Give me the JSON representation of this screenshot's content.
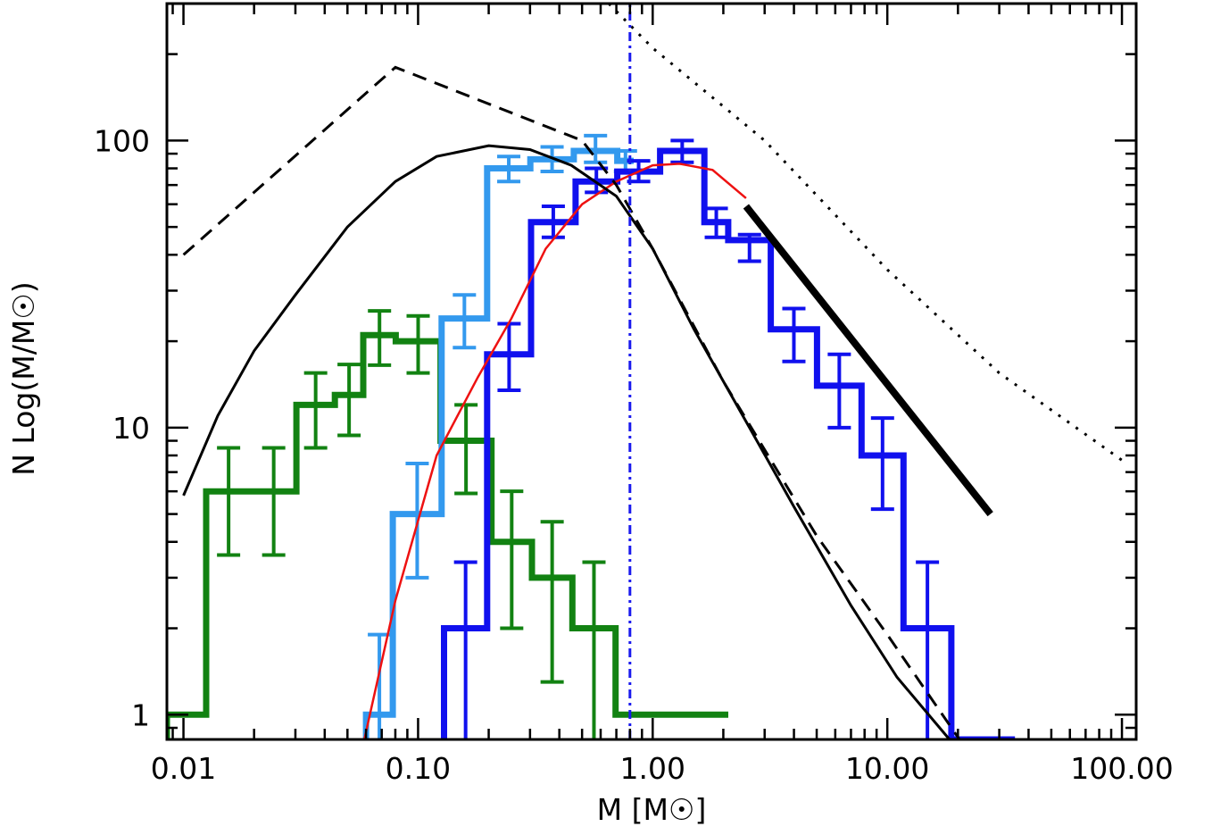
{
  "chart_data": {
    "type": "line",
    "xlabel": "M [M☉]",
    "ylabel": "N Log(M/M☉)",
    "xscale": "log",
    "yscale": "log",
    "xlim": [
      0.0085,
      115
    ],
    "ylim": [
      0.82,
      300
    ],
    "x_tick_labels": [
      "0.01",
      "0.10",
      "1.00",
      "10.00",
      "100.00"
    ],
    "x_tick_values": [
      0.01,
      0.1,
      1,
      10,
      100
    ],
    "y_tick_labels": [
      "1",
      "10",
      "100"
    ],
    "y_tick_values": [
      1,
      10,
      100
    ],
    "grid": false,
    "legend": "none",
    "colors": {
      "green": "#128212",
      "light_blue": "#3399ee",
      "blue": "#1010ee",
      "red": "#ee1111",
      "black": "#000000",
      "dashdot": "#1a1aee"
    },
    "series": [
      {
        "style": "step-histogram",
        "color": "green",
        "edges": [
          0.0085,
          0.0125,
          0.0194,
          0.0303,
          0.0442,
          0.0584,
          0.0803,
          0.1247,
          0.2055,
          0.3057,
          0.4545,
          0.6946,
          1.084,
          1.598,
          2.1
        ],
        "values": [
          1,
          6,
          6,
          12,
          13,
          21,
          20,
          9,
          4,
          3,
          2,
          1,
          1,
          1
        ],
        "err_low": [
          null,
          3.6,
          3.6,
          8.5,
          9.4,
          16.5,
          15.5,
          5.9,
          2.0,
          1.3,
          0.8,
          null,
          null,
          null
        ],
        "err_high": [
          null,
          8.5,
          8.5,
          15.5,
          16.6,
          25.5,
          24.5,
          12.0,
          6.0,
          4.7,
          3.4,
          null,
          null,
          null
        ]
      },
      {
        "style": "step-histogram",
        "color": "light_blue",
        "edges": [
          0.06,
          0.078,
          0.126,
          0.197,
          0.301,
          0.461,
          0.706,
          0.83
        ],
        "values": [
          1,
          5,
          24,
          80,
          86,
          92,
          85
        ],
        "err_low": [
          null,
          3.0,
          19.0,
          72,
          78,
          84,
          78
        ],
        "err_high": [
          1.9,
          7.5,
          29,
          88,
          95,
          104,
          92
        ]
      },
      {
        "style": "step-histogram",
        "color": "blue",
        "edges": [
          0.129,
          0.197,
          0.303,
          0.469,
          0.706,
          1.075,
          1.66,
          2.099,
          3.185,
          5.016,
          7.768,
          11.72,
          18.75,
          27.9,
          35.0
        ],
        "values": [
          2,
          18,
          52,
          72,
          78,
          92,
          52,
          45,
          22,
          14,
          8,
          2,
          0.8,
          0.8
        ],
        "err_low": [
          null,
          13.5,
          46,
          66,
          72,
          84,
          46,
          38,
          17,
          10,
          5.2,
          null,
          null,
          null
        ],
        "err_high": [
          3.4,
          23,
          59,
          80,
          85,
          100,
          58,
          47,
          26,
          18,
          10.8,
          3.4,
          null,
          null
        ]
      },
      {
        "style": "line",
        "color": "red",
        "x": [
          0.059,
          0.08,
          0.12,
          0.18,
          0.25,
          0.35,
          0.5,
          0.7,
          1.0,
          1.3,
          1.8,
          2.5
        ],
        "y": [
          0.82,
          2.5,
          8,
          15,
          24,
          42,
          60,
          72,
          82,
          83,
          79,
          63
        ]
      },
      {
        "style": "line",
        "color": "black",
        "x": [
          0.01,
          0.014,
          0.02,
          0.03,
          0.05,
          0.08,
          0.12,
          0.2,
          0.3,
          0.45,
          0.7,
          1.0,
          1.5,
          2.5,
          4,
          7,
          11,
          18.4
        ],
        "y": [
          5.8,
          11,
          18.5,
          29,
          50,
          72,
          88,
          96,
          93,
          82,
          64,
          42,
          22,
          10.5,
          5.3,
          2.4,
          1.35,
          0.82
        ]
      },
      {
        "style": "dashed",
        "color": "black",
        "x": [
          0.01,
          0.08,
          0.5,
          0.7,
          1.0,
          2.0,
          5.0,
          10.0,
          20.3
        ],
        "y": [
          40,
          180,
          100,
          70,
          42,
          14.5,
          4.2,
          1.9,
          0.82
        ]
      },
      {
        "style": "dotted",
        "color": "black",
        "x": [
          0.65,
          1.0,
          3.0,
          10,
          30,
          100
        ],
        "y": [
          300,
          210,
          100,
          35.5,
          15.5,
          7.7
        ]
      },
      {
        "style": "thick-line",
        "color": "black",
        "x": [
          2.5,
          27.5
        ],
        "y": [
          59,
          5.0
        ]
      },
      {
        "style": "dash-dot-vertical",
        "color": "dashdot",
        "x": [
          0.8,
          0.8
        ],
        "y": [
          0.82,
          300
        ]
      }
    ]
  }
}
